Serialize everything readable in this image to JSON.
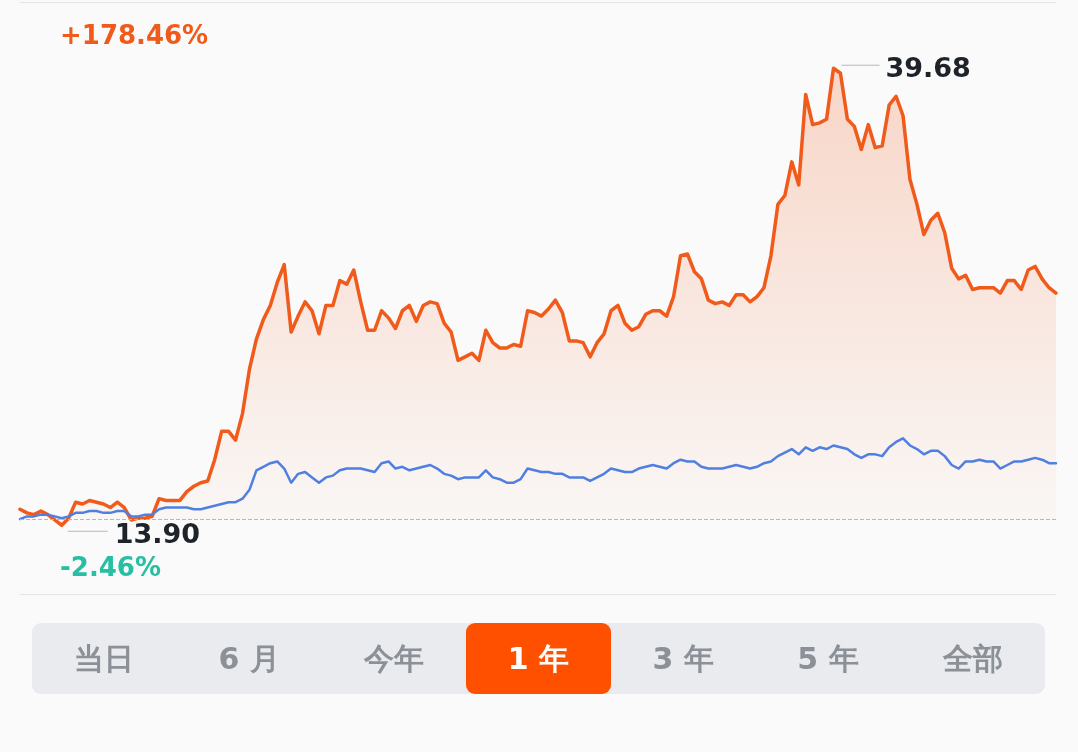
{
  "chart_data": {
    "type": "line",
    "categories": [
      null,
      null,
      null,
      null,
      null,
      null,
      null,
      null,
      null,
      null,
      null,
      null,
      null,
      null,
      null,
      null,
      null,
      null,
      null,
      null,
      null,
      null,
      null,
      null,
      null,
      null,
      null,
      null,
      null,
      null,
      null,
      null,
      null,
      null,
      null,
      null,
      null,
      null,
      null,
      null,
      null,
      null,
      null,
      null,
      null,
      null,
      null,
      null,
      null,
      null,
      null,
      null,
      null,
      null,
      null,
      null,
      null,
      null,
      null,
      null,
      null,
      null,
      null,
      null,
      null,
      null,
      null,
      null,
      null,
      null,
      null,
      null,
      null,
      null,
      null,
      null,
      null,
      null,
      null,
      null,
      null,
      null,
      null,
      null,
      null,
      null,
      null,
      null,
      null,
      null,
      null,
      null,
      null,
      null,
      null,
      null,
      null,
      null,
      null,
      null,
      null,
      null,
      null,
      null,
      null,
      null,
      null,
      null,
      null,
      null,
      null,
      null,
      null,
      null,
      null,
      null,
      null,
      null,
      null,
      null,
      null,
      null,
      null,
      null,
      null,
      null,
      null,
      null,
      null,
      null,
      null,
      null,
      null,
      null,
      null,
      null,
      null,
      null,
      null,
      null,
      null,
      null,
      null,
      null,
      null,
      null,
      null,
      null,
      null,
      null
    ],
    "ylim": [
      10,
      43.4
    ],
    "tick_labels": false,
    "line_style": "solid",
    "series": [
      {
        "type": "area",
        "color": "#f05a1a",
        "colors": [
          "#f05a1a",
          "#f05a1a",
          "#f05a1a",
          "#f05a1a",
          "#f05a1a",
          "#26bfa3",
          "#26bfa3",
          "#f05a1a",
          "#f05a1a",
          "#f05a1a",
          "#f05a1a",
          "#f05a1a",
          "#f05a1a",
          "#f05a1a",
          "#f05a1a",
          "#f05a1a",
          "#26bfa3",
          "#f05a1a",
          "#f05a1a",
          "#f05a1a",
          "#f05a1a",
          "#f05a1a",
          "#f05a1a",
          "#f05a1a",
          "#f05a1a",
          "#f05a1a",
          "#f05a1a",
          "#f05a1a",
          "#f05a1a",
          "#f05a1a",
          "#f05a1a",
          "#f05a1a",
          "#f05a1a",
          "#f05a1a",
          "#f05a1a",
          "#f05a1a",
          "#f05a1a",
          "#f05a1a",
          "#f05a1a",
          "#f05a1a",
          "#f05a1a",
          "#f05a1a",
          "#f05a1a",
          "#f05a1a",
          "#f05a1a",
          "#f05a1a",
          "#f05a1a",
          "#f05a1a",
          "#f05a1a",
          "#f05a1a",
          "#f05a1a",
          "#f05a1a",
          "#f05a1a",
          "#f05a1a",
          "#f05a1a",
          "#f05a1a",
          "#f05a1a",
          "#f05a1a",
          "#f05a1a",
          "#f05a1a",
          "#f05a1a",
          "#f05a1a",
          "#f05a1a",
          "#f05a1a",
          "#f05a1a",
          "#f05a1a",
          "#f05a1a",
          "#f05a1a",
          "#f05a1a",
          "#f05a1a",
          "#f05a1a",
          "#f05a1a",
          "#f05a1a",
          "#f05a1a",
          "#f05a1a",
          "#f05a1a",
          "#f05a1a",
          "#f05a1a",
          "#f05a1a",
          "#f05a1a",
          "#f05a1a",
          "#f05a1a",
          "#f05a1a",
          "#f05a1a",
          "#f05a1a",
          "#f05a1a",
          "#f05a1a",
          "#f05a1a",
          "#f05a1a",
          "#f05a1a",
          "#f05a1a",
          "#f05a1a",
          "#f05a1a",
          "#f05a1a",
          "#f05a1a",
          "#f05a1a",
          "#f05a1a",
          "#f05a1a",
          "#f05a1a",
          "#f05a1a",
          "#f05a1a",
          "#f05a1a",
          "#f05a1a",
          "#f05a1a",
          "#f05a1a",
          "#f05a1a",
          "#f05a1a",
          "#f05a1a",
          "#f05a1a",
          "#f05a1a",
          "#f05a1a",
          "#f05a1a",
          "#f05a1a",
          "#f05a1a",
          "#f05a1a",
          "#f05a1a",
          "#f05a1a",
          "#f05a1a",
          "#f05a1a",
          "#f05a1a",
          "#f05a1a",
          "#f05a1a",
          "#f05a1a",
          "#f05a1a",
          "#f05a1a",
          "#f05a1a",
          "#f05a1a",
          "#f05a1a",
          "#f05a1a",
          "#f05a1a",
          "#f05a1a",
          "#f05a1a",
          "#f05a1a",
          "#f05a1a",
          "#f05a1a",
          "#f05a1a",
          "#f05a1a",
          "#f05a1a",
          "#f05a1a",
          "#f05a1a",
          "#f05a1a",
          "#f05a1a",
          "#f05a1a",
          "#f05a1a",
          "#f05a1a",
          "#f05a1a",
          "#f05a1a",
          "#f05a1a",
          "#f05a1a",
          "#f05a1a"
        ],
        "values": [
          14.8,
          14.6,
          14.5,
          14.7,
          14.5,
          14.2,
          13.9,
          14.3,
          15.2,
          15.1,
          15.3,
          15.2,
          15.1,
          14.9,
          15.2,
          14.9,
          14.2,
          14.3,
          14.3,
          14.4,
          15.4,
          15.3,
          15.3,
          15.3,
          15.8,
          16.1,
          16.3,
          16.4,
          17.6,
          19.2,
          19.2,
          18.7,
          20.2,
          22.7,
          24.4,
          25.5,
          26.3,
          27.6,
          28.6,
          24.8,
          25.7,
          26.5,
          26.0,
          24.7,
          26.3,
          26.3,
          27.7,
          27.5,
          28.3,
          26.5,
          24.9,
          24.9,
          26.0,
          25.6,
          25.0,
          26.0,
          26.3,
          25.4,
          26.3,
          26.5,
          26.4,
          25.3,
          24.8,
          23.2,
          23.4,
          23.6,
          23.2,
          24.9,
          24.2,
          23.9,
          23.9,
          24.1,
          24.0,
          26.0,
          25.9,
          25.7,
          26.1,
          26.6,
          25.9,
          24.3,
          24.3,
          24.2,
          23.4,
          24.2,
          24.7,
          26.0,
          26.3,
          25.3,
          24.9,
          25.1,
          25.8,
          26.0,
          26.0,
          25.7,
          26.8,
          29.1,
          29.2,
          28.2,
          27.8,
          26.6,
          26.4,
          26.5,
          26.3,
          26.9,
          26.9,
          26.5,
          26.8,
          27.3,
          29.1,
          32.0,
          32.5,
          34.4,
          33.1,
          38.2,
          36.5,
          36.6,
          36.8,
          39.68,
          39.4,
          36.8,
          36.4,
          35.1,
          36.5,
          35.2,
          35.3,
          37.6,
          38.1,
          37.0,
          33.4,
          32.0,
          30.3,
          31.1,
          31.5,
          30.4,
          28.4,
          27.8,
          28.0,
          27.2,
          27.3,
          27.3,
          27.3,
          27.0,
          27.7,
          27.7,
          27.2,
          28.3,
          28.5,
          27.8,
          27.3,
          27.0
        ],
        "value_labels": [
          null,
          null,
          null,
          null,
          null,
          null,
          "13.90",
          null,
          null,
          null,
          null,
          null,
          null,
          null,
          null,
          null,
          null,
          null,
          null,
          null,
          null,
          null,
          null,
          null,
          null,
          null,
          null,
          null,
          null,
          null,
          null,
          null,
          null,
          null,
          null,
          null,
          null,
          null,
          null,
          null,
          null,
          null,
          null,
          null,
          null,
          null,
          null,
          null,
          null,
          null,
          null,
          null,
          null,
          null,
          null,
          null,
          null,
          null,
          null,
          null,
          null,
          null,
          null,
          null,
          null,
          null,
          null,
          null,
          null,
          null,
          null,
          null,
          null,
          null,
          null,
          null,
          null,
          null,
          null,
          null,
          null,
          null,
          null,
          null,
          null,
          null,
          null,
          null,
          null,
          null,
          null,
          null,
          null,
          null,
          null,
          null,
          null,
          null,
          null,
          null,
          null,
          null,
          null,
          null,
          null,
          null,
          null,
          null,
          null,
          null,
          null,
          null,
          null,
          null,
          null,
          null,
          null,
          "39.68",
          null,
          null,
          null,
          null,
          null,
          null,
          null,
          null,
          null,
          null,
          null,
          null,
          null,
          null,
          null,
          null,
          null,
          null,
          null,
          null,
          null,
          null,
          null,
          null,
          null,
          null,
          null,
          null,
          null,
          null,
          null,
          null
        ]
      },
      {
        "color": "#4f7fe0",
        "values": [
          14.25,
          14.4,
          14.4,
          14.5,
          14.5,
          14.4,
          14.3,
          14.4,
          14.6,
          14.6,
          14.7,
          14.7,
          14.6,
          14.6,
          14.7,
          14.7,
          14.4,
          14.4,
          14.5,
          14.5,
          14.8,
          14.9,
          14.9,
          14.9,
          14.9,
          14.8,
          14.8,
          14.9,
          15.0,
          15.1,
          15.2,
          15.2,
          15.4,
          15.9,
          17.0,
          17.2,
          17.4,
          17.5,
          17.1,
          16.3,
          16.8,
          16.9,
          16.6,
          16.3,
          16.6,
          16.7,
          17.0,
          17.1,
          17.1,
          17.1,
          17.0,
          16.9,
          17.4,
          17.5,
          17.1,
          17.2,
          17.0,
          17.1,
          17.2,
          17.3,
          17.1,
          16.8,
          16.7,
          16.5,
          16.6,
          16.6,
          16.6,
          17.0,
          16.6,
          16.5,
          16.3,
          16.3,
          16.5,
          17.1,
          17.0,
          16.9,
          16.9,
          16.8,
          16.8,
          16.6,
          16.6,
          16.6,
          16.4,
          16.6,
          16.8,
          17.1,
          17.0,
          16.9,
          16.9,
          17.1,
          17.2,
          17.3,
          17.2,
          17.1,
          17.4,
          17.6,
          17.5,
          17.5,
          17.2,
          17.1,
          17.1,
          17.1,
          17.2,
          17.3,
          17.2,
          17.1,
          17.2,
          17.4,
          17.5,
          17.8,
          18.0,
          18.2,
          17.9,
          18.3,
          18.1,
          18.3,
          18.2,
          18.4,
          18.3,
          18.2,
          17.9,
          17.7,
          17.9,
          17.9,
          17.8,
          18.3,
          18.6,
          18.8,
          18.4,
          18.2,
          17.9,
          18.1,
          18.1,
          17.8,
          17.3,
          17.1,
          17.5,
          17.5,
          17.6,
          17.5,
          17.5,
          17.1,
          17.3,
          17.5,
          17.5,
          17.6,
          17.7,
          17.6,
          17.4,
          17.4
        ]
      }
    ],
    "ref_lines": [
      {
        "axis": "y",
        "value": 14.25,
        "color": "#b8b8b8",
        "line_style": "dashed"
      }
    ],
    "annotations": [
      "+178.46%",
      "-2.46%",
      "当日",
      "6 月",
      "今年",
      "1 年",
      "3 年",
      "5 年",
      "全部"
    ]
  }
}
